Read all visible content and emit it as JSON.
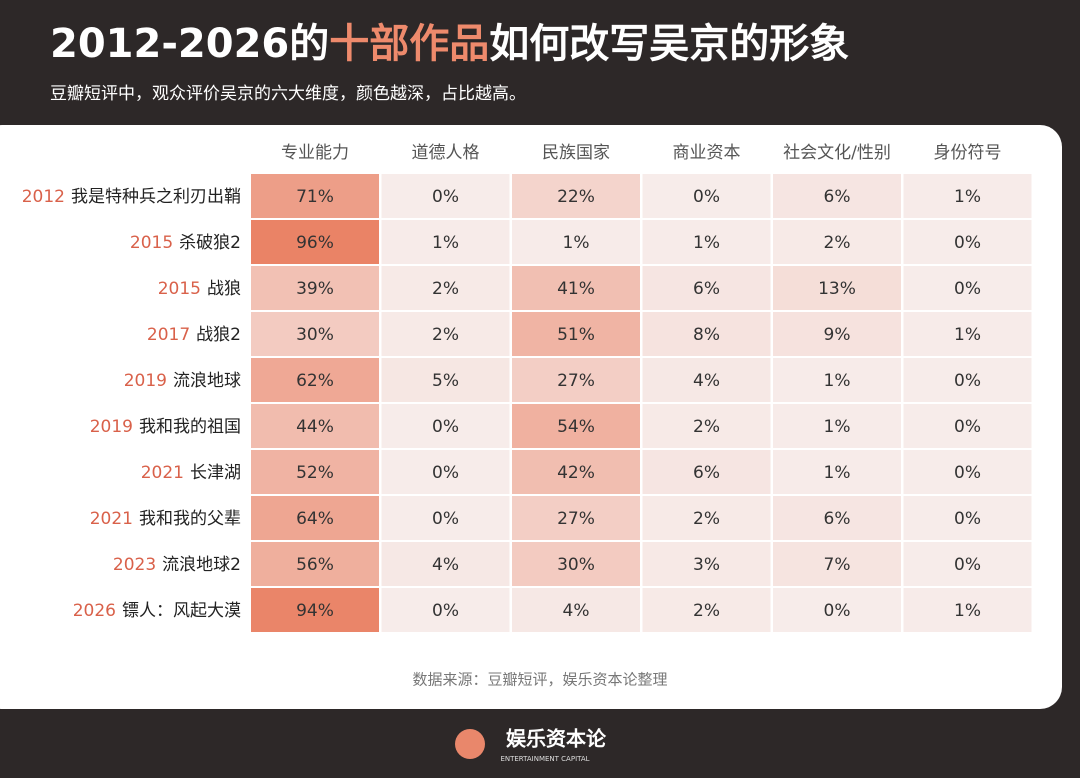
{
  "chart_data": {
    "type": "heatmap",
    "title_parts": [
      "2012-2026的",
      "十部作品",
      "如何改写吴京的形象"
    ],
    "title_highlight": 1,
    "subtitle": "豆瓣短评中，观众评价吴京的六大维度，颜色越深，占比越高。",
    "categories": [
      {
        "year": "2012",
        "title": "我是特种兵之利刃出鞘"
      },
      {
        "year": "2015",
        "title": "杀破狼2"
      },
      {
        "year": "2015",
        "title": "战狼"
      },
      {
        "year": "2017",
        "title": "战狼2"
      },
      {
        "year": "2019",
        "title": "流浪地球"
      },
      {
        "year": "2019",
        "title": "我和我的祖国"
      },
      {
        "year": "2021",
        "title": "长津湖"
      },
      {
        "year": "2021",
        "title": "我和我的父辈"
      },
      {
        "year": "2023",
        "title": "流浪地球2"
      },
      {
        "year": "2026",
        "title": "镖人：风起大漠"
      }
    ],
    "series": [
      {
        "name": "专业能力",
        "values": [
          71,
          96,
          39,
          30,
          62,
          44,
          52,
          64,
          56,
          94
        ],
        "value_labels": [
          "71%",
          "96%",
          "39%",
          "30%",
          "62%",
          "44%",
          "52%",
          "64%",
          "56%",
          "94%"
        ]
      },
      {
        "name": "道德人格",
        "values": [
          0,
          1,
          2,
          2,
          5,
          0,
          0,
          0,
          4,
          0
        ],
        "value_labels": [
          "0%",
          "1%",
          "2%",
          "2%",
          "5%",
          "0%",
          "0%",
          "0%",
          "4%",
          "0%"
        ]
      },
      {
        "name": "民族国家",
        "values": [
          22,
          1,
          41,
          51,
          27,
          54,
          42,
          27,
          30,
          4
        ],
        "value_labels": [
          "22%",
          "1%",
          "41%",
          "51%",
          "27%",
          "54%",
          "42%",
          "27%",
          "30%",
          "4%"
        ]
      },
      {
        "name": "商业资本",
        "values": [
          0,
          1,
          6,
          8,
          4,
          2,
          6,
          2,
          3,
          2
        ],
        "value_labels": [
          "0%",
          "1%",
          "6%",
          "8%",
          "4%",
          "2%",
          "6%",
          "2%",
          "3%",
          "2%"
        ]
      },
      {
        "name": "社会文化/性别",
        "values": [
          6,
          2,
          13,
          9,
          1,
          1,
          1,
          6,
          7,
          0
        ],
        "value_labels": [
          "6%",
          "2%",
          "13%",
          "9%",
          "1%",
          "1%",
          "1%",
          "6%",
          "7%",
          "0%"
        ]
      },
      {
        "name": "身份符号",
        "values": [
          1,
          0,
          0,
          1,
          0,
          0,
          0,
          0,
          0,
          1
        ],
        "value_labels": [
          "1%",
          "0%",
          "0%",
          "1%",
          "0%",
          "0%",
          "0%",
          "0%",
          "0%",
          "1%"
        ]
      }
    ],
    "color_scale": [
      "#f7ecea",
      "#ea8366"
    ],
    "source": "数据来源：豆瓣短评，娱乐资本论整理",
    "logo": "娱乐资本论",
    "logo_subtitle": "ENTERTAINMENT CAPITAL"
  }
}
